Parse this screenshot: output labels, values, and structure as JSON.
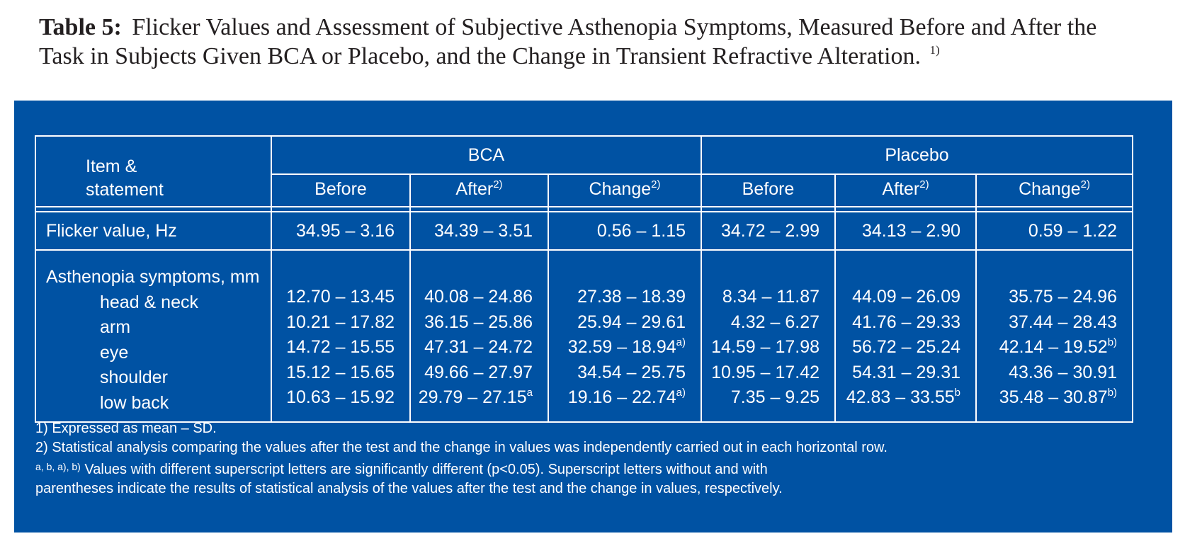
{
  "caption": {
    "label": "Table 5:",
    "text": "Flicker Values and Assessment of Subjective Asthenopia Symptoms, Measured Before and After the Task in Subjects Given BCA or Placebo, and the Change in Transient Refractive Alteration.",
    "sup": "1)"
  },
  "header": {
    "item": [
      "Item &",
      "statement"
    ],
    "groups": [
      "BCA",
      "Placebo"
    ],
    "cols": [
      {
        "label": "Before",
        "sup": ""
      },
      {
        "label": "After",
        "sup": "2)"
      },
      {
        "label": "Change",
        "sup": "2)"
      },
      {
        "label": "Before",
        "sup": ""
      },
      {
        "label": "After",
        "sup": "2)"
      },
      {
        "label": "Change",
        "sup": "2)"
      }
    ]
  },
  "flicker": {
    "label": "Flicker value, Hz",
    "values": [
      "34.95 – 3.16",
      "34.39 – 3.51",
      "0.56 – 1.15",
      "34.72 – 2.99",
      "34.13 – 2.90",
      "0.59 – 1.22"
    ]
  },
  "asthenopia": {
    "label": "Asthenopia symptoms, mm",
    "items": [
      "head & neck",
      "arm",
      "eye",
      "shoulder",
      "low back"
    ],
    "columns": [
      [
        {
          "v": "12.70 – 13.45",
          "s": ""
        },
        {
          "v": "10.21 – 17.82",
          "s": ""
        },
        {
          "v": "14.72  – 15.55",
          "s": ""
        },
        {
          "v": "15.12 – 15.65",
          "s": ""
        },
        {
          "v": "10.63 – 15.92",
          "s": ""
        }
      ],
      [
        {
          "v": "40.08 – 24.86",
          "s": ""
        },
        {
          "v": "36.15 – 25.86",
          "s": ""
        },
        {
          "v": "47.31 – 24.72",
          "s": ""
        },
        {
          "v": "49.66 – 27.97",
          "s": ""
        },
        {
          "v": "29.79 – 27.15",
          "s": "a"
        }
      ],
      [
        {
          "v": "27.38 – 18.39",
          "s": ""
        },
        {
          "v": "25.94 – 29.61",
          "s": ""
        },
        {
          "v": "32.59 – 18.94",
          "s": "a)"
        },
        {
          "v": "34.54 – 25.75",
          "s": ""
        },
        {
          "v": "19.16 – 22.74",
          "s": "a)"
        }
      ],
      [
        {
          "v": "8.34 – 11.87",
          "s": ""
        },
        {
          "v": "4.32 – 6.27",
          "s": ""
        },
        {
          "v": "14.59 – 17.98",
          "s": ""
        },
        {
          "v": "10.95 – 17.42",
          "s": ""
        },
        {
          "v": "7.35 – 9.25",
          "s": ""
        }
      ],
      [
        {
          "v": "44.09 – 26.09",
          "s": ""
        },
        {
          "v": "41.76 – 29.33",
          "s": ""
        },
        {
          "v": "56.72 – 25.24",
          "s": ""
        },
        {
          "v": "54.31 – 29.31",
          "s": ""
        },
        {
          "v": "42.83 – 33.55",
          "s": "b"
        }
      ],
      [
        {
          "v": "35.75 – 24.96",
          "s": ""
        },
        {
          "v": "37.44 – 28.43",
          "s": ""
        },
        {
          "v": "42.14 – 19.52",
          "s": "b)"
        },
        {
          "v": "43.36 – 30.91",
          "s": ""
        },
        {
          "v": "35.48 – 30.87",
          "s": "b)"
        }
      ]
    ]
  },
  "footnotes": {
    "n1": "1) Expressed as mean – SD.",
    "n2": "2) Statistical analysis comparing the values after the test and the change in values was independently carried out in each horizontal row.",
    "n3_sup": "a, b, a), b)",
    "n3_text": " Values with different superscript letters are significantly different (p<0.05).  Superscript letters without and with",
    "n4": "parentheses indicate the  results of statistical analysis of the values after the test and the change in values, respectively."
  },
  "colors": {
    "panel": "#0052a3",
    "text": "#ffffff",
    "caption": "#231f20"
  }
}
